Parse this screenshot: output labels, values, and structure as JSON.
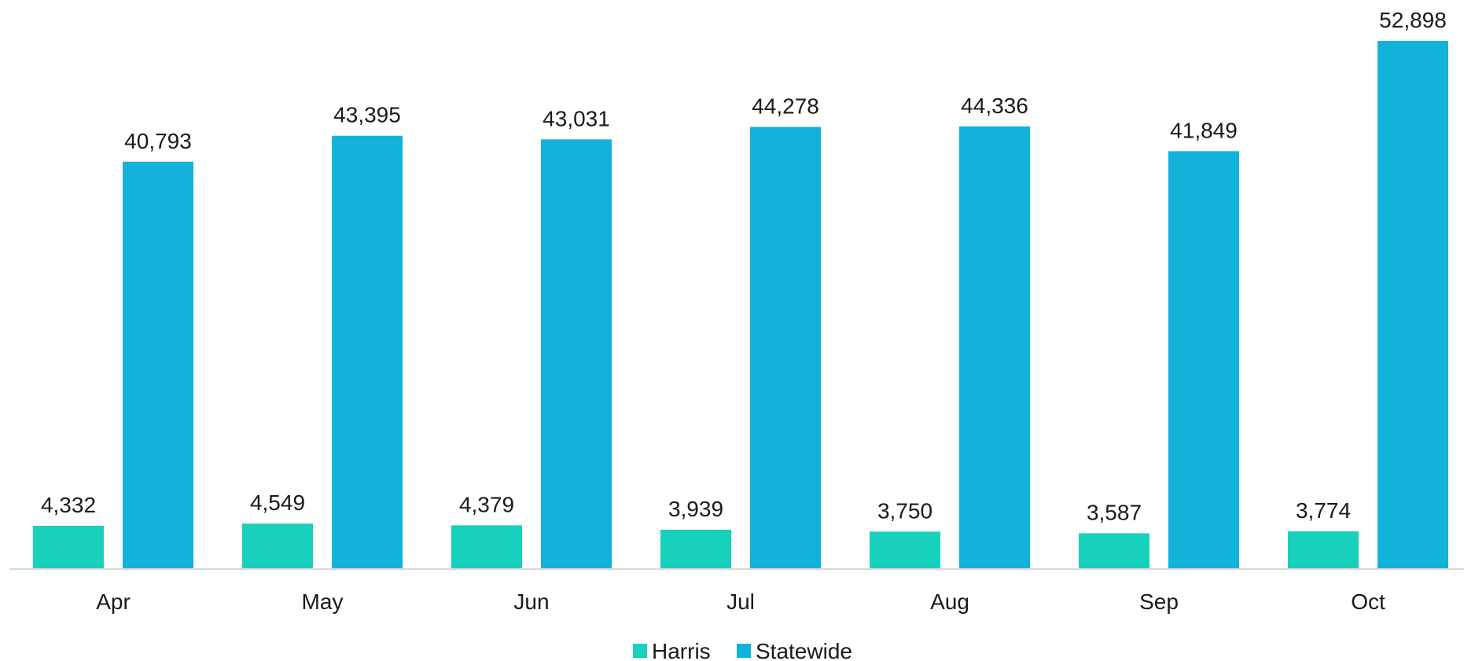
{
  "chart_data": {
    "type": "bar",
    "categories": [
      "Apr",
      "May",
      "Jun",
      "Jul",
      "Aug",
      "Sep",
      "Oct"
    ],
    "series": [
      {
        "name": "Harris",
        "color": "#17d1bc",
        "values": [
          4332,
          4549,
          4379,
          3939,
          3750,
          3587,
          3774
        ],
        "labels": [
          "4,332",
          "4,549",
          "4,379",
          "3,939",
          "3,750",
          "3,587",
          "3,774"
        ]
      },
      {
        "name": "Statewide",
        "color": "#12b2db",
        "values": [
          40793,
          43395,
          43031,
          44278,
          44336,
          41849,
          52898
        ],
        "labels": [
          "40,793",
          "43,395",
          "43,031",
          "44,278",
          "44,336",
          "41,849",
          "52,898"
        ]
      }
    ],
    "ylim": [
      0,
      52898
    ],
    "grid": false,
    "legend_position": "bottom"
  }
}
